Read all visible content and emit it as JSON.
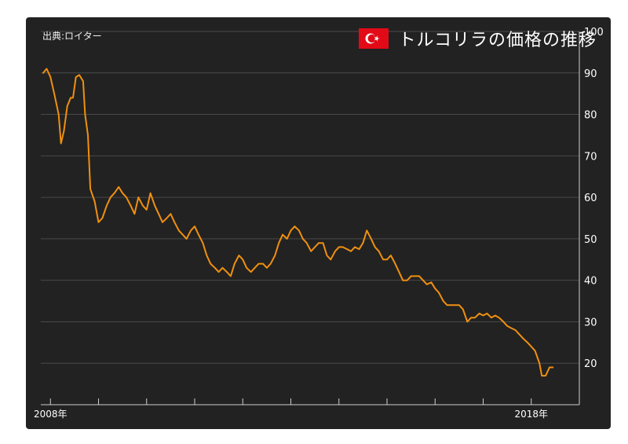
{
  "source": "出典:ロイター",
  "title": "トルコリラの価格の推移",
  "colors": {
    "line": "#f0900f",
    "background": "#222222",
    "grid": "#4a4a4a",
    "flag": "#e30a17"
  },
  "chart_data": {
    "type": "line",
    "title": "トルコリラの価格の推移",
    "xlabel": "",
    "ylabel": "",
    "x_range": [
      2007.8,
      2019.0
    ],
    "ylim": [
      10,
      100
    ],
    "yticks": [
      20,
      30,
      40,
      50,
      60,
      70,
      80,
      90,
      100
    ],
    "xtick_labels": [
      {
        "x": 2008.0,
        "label": "2008年"
      },
      {
        "x": 2018.0,
        "label": "2018年"
      }
    ],
    "xtick_marks": [
      2008,
      2009,
      2010,
      2011,
      2012,
      2013,
      2014,
      2015,
      2016,
      2017,
      2018
    ],
    "y_axis_side": "right",
    "grid": true,
    "legend": "none",
    "series": [
      {
        "values": [
          [
            2007.85,
            90
          ],
          [
            2007.92,
            91
          ],
          [
            2008.0,
            89
          ],
          [
            2008.08,
            85
          ],
          [
            2008.17,
            80
          ],
          [
            2008.22,
            73
          ],
          [
            2008.28,
            76
          ],
          [
            2008.35,
            82
          ],
          [
            2008.42,
            84
          ],
          [
            2008.47,
            84
          ],
          [
            2008.53,
            89
          ],
          [
            2008.6,
            89.5
          ],
          [
            2008.68,
            88
          ],
          [
            2008.72,
            80
          ],
          [
            2008.78,
            75
          ],
          [
            2008.83,
            62
          ],
          [
            2008.92,
            59
          ],
          [
            2009.0,
            54
          ],
          [
            2009.08,
            55
          ],
          [
            2009.17,
            58
          ],
          [
            2009.25,
            60
          ],
          [
            2009.33,
            61
          ],
          [
            2009.42,
            62.5
          ],
          [
            2009.5,
            61
          ],
          [
            2009.58,
            60
          ],
          [
            2009.67,
            58
          ],
          [
            2009.75,
            56
          ],
          [
            2009.83,
            60
          ],
          [
            2009.92,
            58
          ],
          [
            2010.0,
            57
          ],
          [
            2010.08,
            61
          ],
          [
            2010.17,
            58
          ],
          [
            2010.25,
            56
          ],
          [
            2010.33,
            54
          ],
          [
            2010.42,
            55
          ],
          [
            2010.5,
            56
          ],
          [
            2010.58,
            54
          ],
          [
            2010.67,
            52
          ],
          [
            2010.75,
            51
          ],
          [
            2010.83,
            50
          ],
          [
            2010.92,
            52
          ],
          [
            2011.0,
            53
          ],
          [
            2011.08,
            51
          ],
          [
            2011.17,
            49
          ],
          [
            2011.25,
            46
          ],
          [
            2011.33,
            44
          ],
          [
            2011.42,
            43
          ],
          [
            2011.5,
            42
          ],
          [
            2011.58,
            43
          ],
          [
            2011.67,
            42
          ],
          [
            2011.75,
            41
          ],
          [
            2011.83,
            44
          ],
          [
            2011.92,
            46
          ],
          [
            2012.0,
            45
          ],
          [
            2012.08,
            43
          ],
          [
            2012.17,
            42
          ],
          [
            2012.25,
            43
          ],
          [
            2012.33,
            44
          ],
          [
            2012.42,
            44
          ],
          [
            2012.5,
            43
          ],
          [
            2012.58,
            44
          ],
          [
            2012.67,
            46
          ],
          [
            2012.75,
            49
          ],
          [
            2012.83,
            51
          ],
          [
            2012.92,
            50
          ],
          [
            2013.0,
            52
          ],
          [
            2013.08,
            53
          ],
          [
            2013.17,
            52
          ],
          [
            2013.25,
            50
          ],
          [
            2013.33,
            49
          ],
          [
            2013.42,
            47
          ],
          [
            2013.5,
            48
          ],
          [
            2013.58,
            49
          ],
          [
            2013.67,
            49
          ],
          [
            2013.75,
            46
          ],
          [
            2013.83,
            45
          ],
          [
            2013.92,
            47
          ],
          [
            2014.0,
            48
          ],
          [
            2014.08,
            48
          ],
          [
            2014.17,
            47.5
          ],
          [
            2014.25,
            47
          ],
          [
            2014.33,
            48
          ],
          [
            2014.42,
            47.5
          ],
          [
            2014.5,
            49
          ],
          [
            2014.58,
            52
          ],
          [
            2014.67,
            50
          ],
          [
            2014.75,
            48
          ],
          [
            2014.83,
            47
          ],
          [
            2014.92,
            45
          ],
          [
            2015.0,
            45
          ],
          [
            2015.08,
            46
          ],
          [
            2015.17,
            44
          ],
          [
            2015.25,
            42
          ],
          [
            2015.33,
            40
          ],
          [
            2015.42,
            40
          ],
          [
            2015.5,
            41
          ],
          [
            2015.58,
            41
          ],
          [
            2015.67,
            41
          ],
          [
            2015.75,
            40
          ],
          [
            2015.83,
            39
          ],
          [
            2015.92,
            39.5
          ],
          [
            2016.0,
            38
          ],
          [
            2016.08,
            37
          ],
          [
            2016.17,
            35
          ],
          [
            2016.25,
            34
          ],
          [
            2016.33,
            34
          ],
          [
            2016.42,
            34
          ],
          [
            2016.5,
            34
          ],
          [
            2016.58,
            33
          ],
          [
            2016.67,
            30
          ],
          [
            2016.75,
            31
          ],
          [
            2016.83,
            31
          ],
          [
            2016.92,
            32
          ],
          [
            2017.0,
            31.5
          ],
          [
            2017.08,
            32
          ],
          [
            2017.17,
            31
          ],
          [
            2017.25,
            31.5
          ],
          [
            2017.33,
            31
          ],
          [
            2017.42,
            30
          ],
          [
            2017.5,
            29
          ],
          [
            2017.58,
            28.5
          ],
          [
            2017.67,
            28
          ],
          [
            2017.75,
            27
          ],
          [
            2017.83,
            26
          ],
          [
            2017.92,
            25
          ],
          [
            2018.0,
            24
          ],
          [
            2018.08,
            23
          ],
          [
            2018.17,
            20
          ],
          [
            2018.22,
            17
          ],
          [
            2018.3,
            17
          ],
          [
            2018.38,
            19
          ],
          [
            2018.45,
            19
          ]
        ]
      }
    ]
  }
}
